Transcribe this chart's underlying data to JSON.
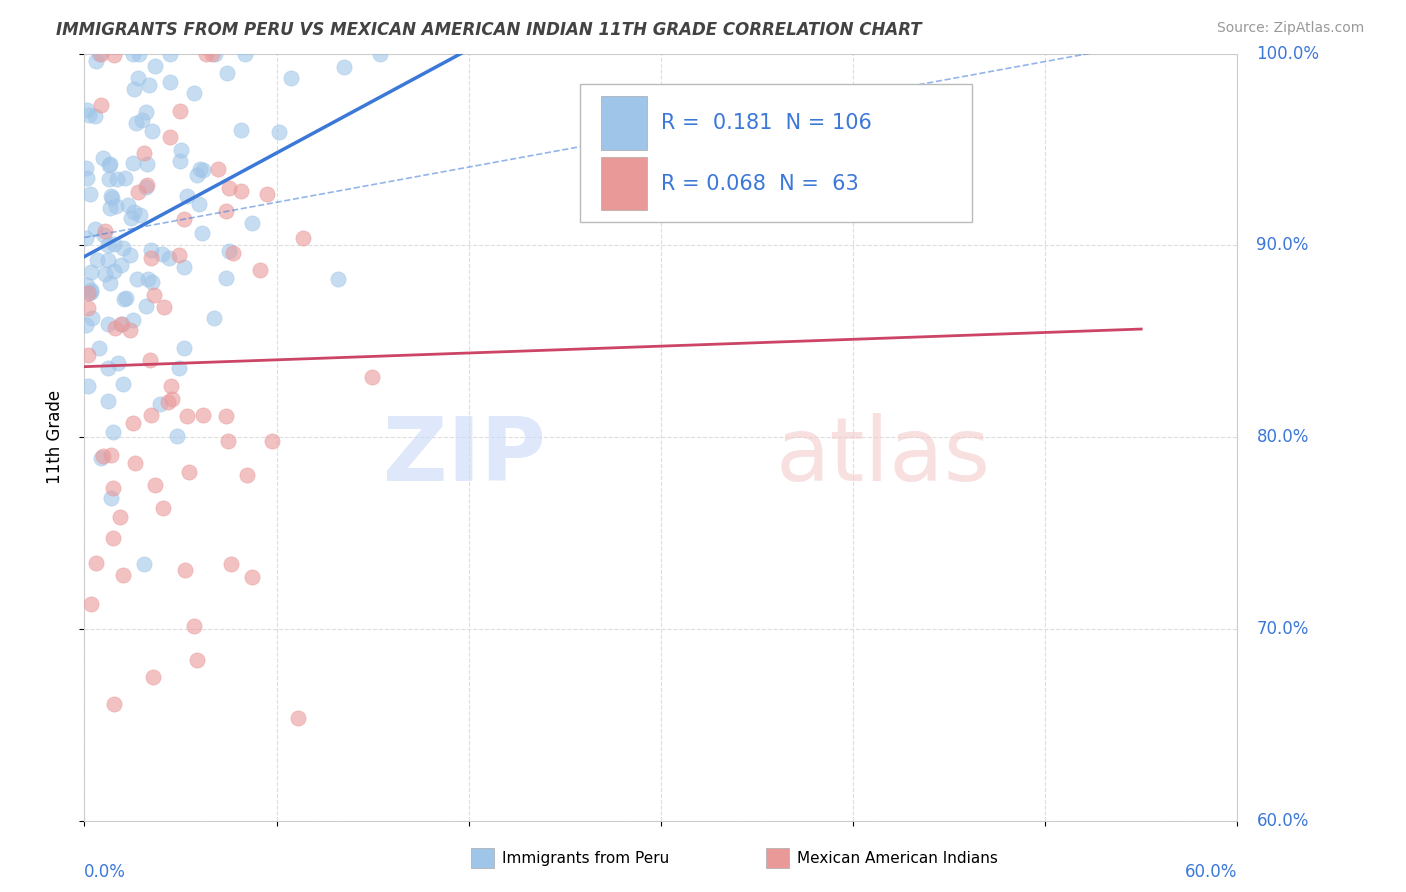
{
  "title": "IMMIGRANTS FROM PERU VS MEXICAN AMERICAN INDIAN 11TH GRADE CORRELATION CHART",
  "source": "Source: ZipAtlas.com",
  "ylabel": "11th Grade",
  "legend_blue_R": "0.181",
  "legend_blue_N": "106",
  "legend_pink_R": "0.068",
  "legend_pink_N": "63",
  "blue_color": "#9fc5e8",
  "pink_color": "#ea9999",
  "blue_line_color": "#3c78d8",
  "pink_line_color": "#cc4466",
  "x_min": 0.0,
  "x_max": 60.0,
  "y_min": 60.0,
  "y_max": 100.0,
  "x_ticks": [
    0,
    10,
    20,
    30,
    40,
    50,
    60
  ],
  "y_ticks": [
    60,
    70,
    80,
    90,
    100
  ],
  "blue_N": 106,
  "pink_N": 63,
  "blue_R": 0.181,
  "pink_R": 0.068,
  "label_color": "#3c78d8",
  "grid_color": "#dddddd",
  "title_color": "#434343",
  "source_color": "#999999",
  "watermark_zip_color": "#c9daf8",
  "watermark_atlas_color": "#f4cccc"
}
